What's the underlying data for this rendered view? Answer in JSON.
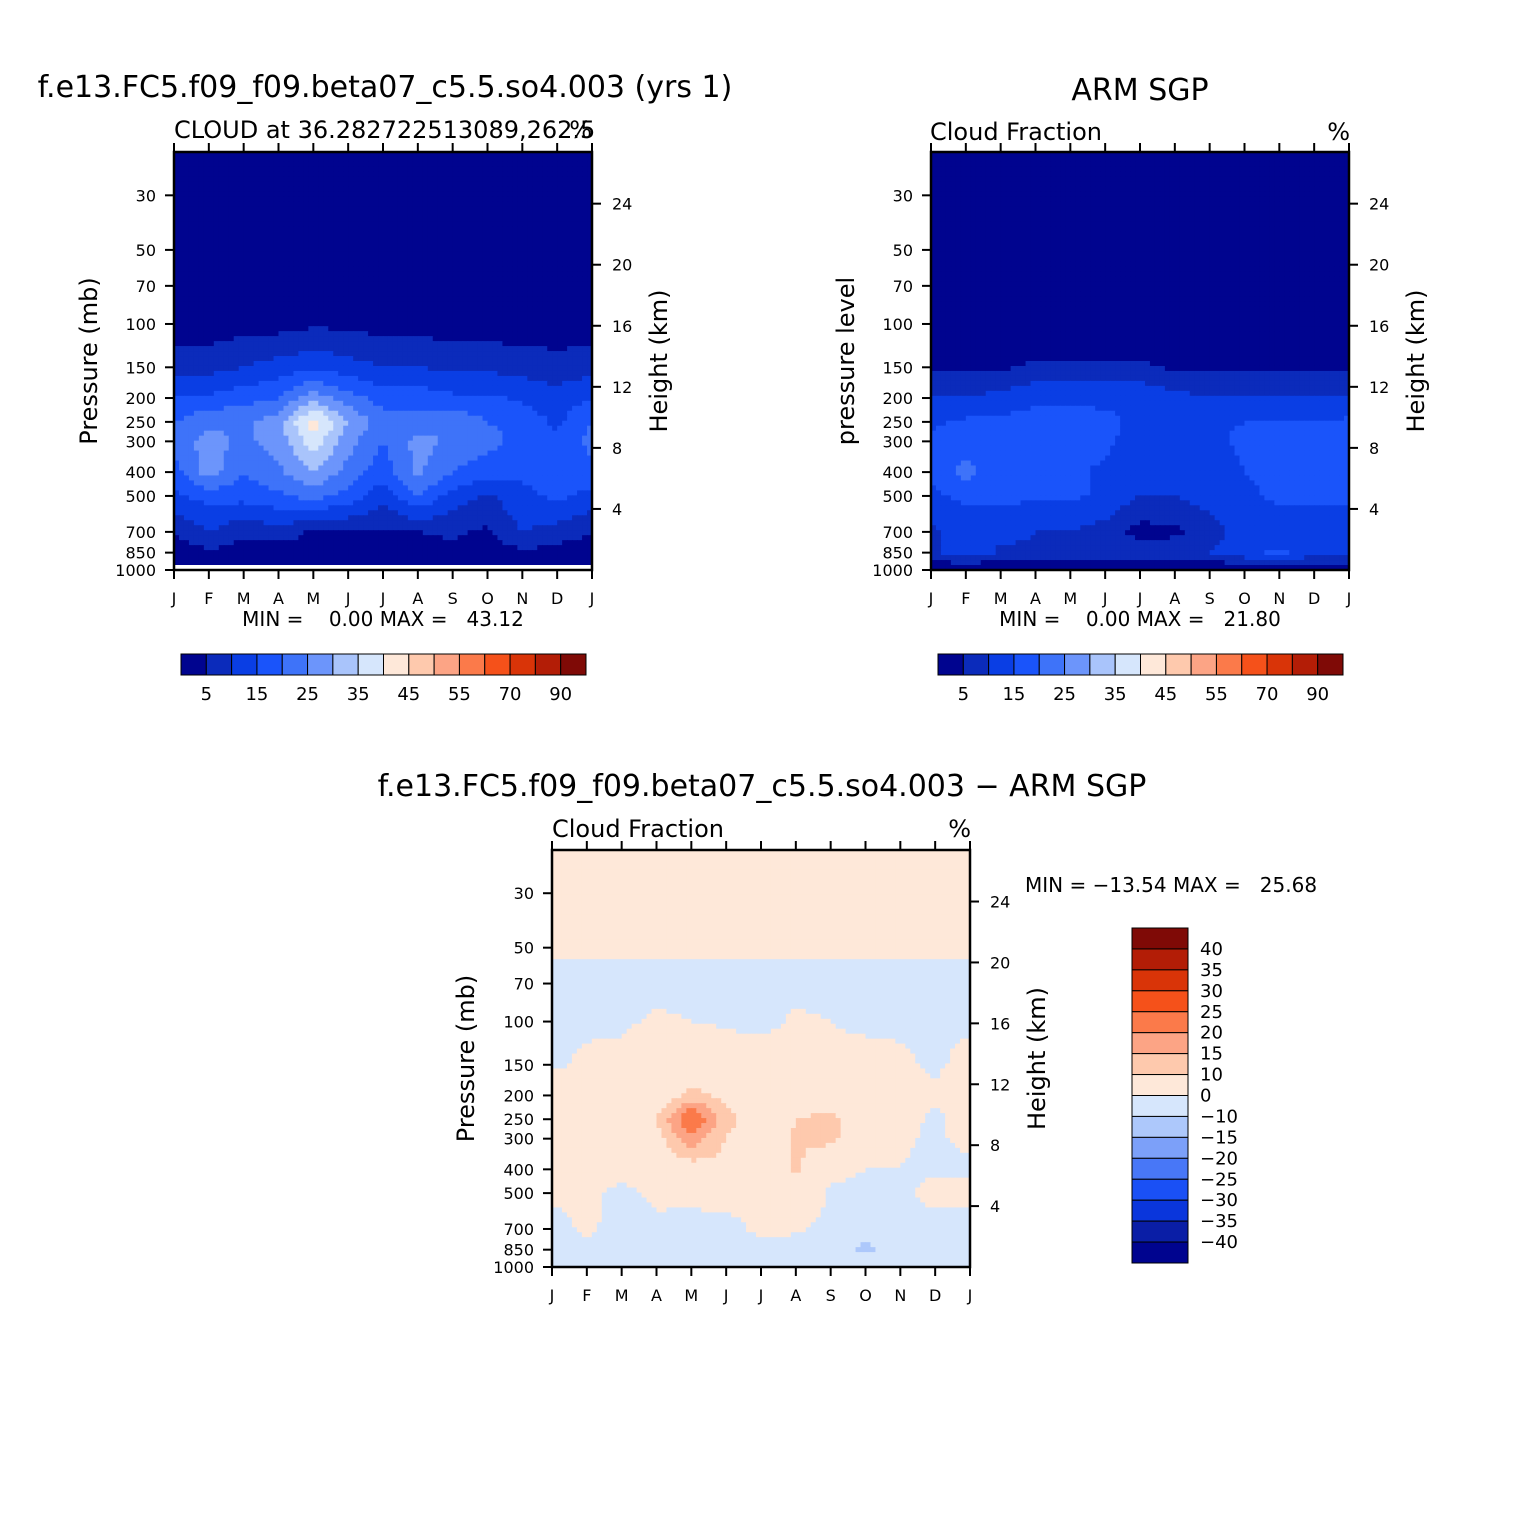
{
  "palettes": {
    "abs": [
      "#00048f",
      "#0b2bbb",
      "#0a3ee4",
      "#1a54fa",
      "#3e73f9",
      "#6c95fb",
      "#a9c4fb",
      "#d6e6fc",
      "#fee8d9",
      "#fec9ad",
      "#fca485",
      "#fb7a4a",
      "#f5511a",
      "#d93408",
      "#b31d06",
      "#7f0a06"
    ],
    "diff": [
      "#00048f",
      "#0a1ea6",
      "#0a36dc",
      "#1a50f5",
      "#4877f7",
      "#7ca0f9",
      "#adc8fb",
      "#d6e6fc",
      "#fee8d9",
      "#fec9ad",
      "#fca485",
      "#fb7a4a",
      "#f5511a",
      "#d93408",
      "#b31d06",
      "#7f0a06"
    ]
  },
  "chart_data": [
    {
      "type": "heatmap",
      "title": "f.e13.FC5.f09_f09.beta07_c5.5.so4.003 (yrs 1)",
      "subtitle": "CLOUD at 36.282722513089,262.5",
      "units": "%",
      "ylabel": "Pressure (mb)",
      "y2label": "Height (km)",
      "x": [
        "J",
        "F",
        "M",
        "A",
        "M",
        "J",
        "J",
        "A",
        "S",
        "O",
        "N",
        "D",
        "J"
      ],
      "y_pressure_ticks": [
        30,
        50,
        70,
        100,
        150,
        200,
        250,
        300,
        400,
        500,
        700,
        850,
        1000
      ],
      "y_height_ticks": [
        4,
        8,
        12,
        16,
        20,
        24
      ],
      "y_log_scale": true,
      "ylim": [
        1000,
        20
      ],
      "stats_text": "MIN =    0.00 MAX =   43.12",
      "min": 0.0,
      "max": 43.12,
      "colorbar_labels": [
        "5",
        "15",
        "25",
        "35",
        "45",
        "55",
        "70",
        "90"
      ],
      "contour_levels": [
        5,
        10,
        15,
        20,
        25,
        30,
        35,
        40,
        45,
        50,
        55,
        60,
        70,
        80,
        90
      ],
      "pressure_levels": [
        1000,
        850,
        700,
        500,
        400,
        300,
        250,
        200,
        150,
        100,
        70,
        50,
        30
      ],
      "values": [
        [
          0,
          0,
          0,
          0,
          0,
          0,
          0,
          0,
          0,
          0,
          0,
          0,
          0
        ],
        [
          2,
          4,
          3,
          2,
          3,
          2,
          4,
          3,
          3,
          3,
          4,
          3,
          2
        ],
        [
          5,
          10,
          6,
          8,
          4,
          5,
          4,
          5,
          6,
          4,
          10,
          8,
          5
        ],
        [
          14,
          17,
          17,
          19,
          22,
          18,
          12,
          20,
          13,
          9,
          14,
          16,
          14
        ],
        [
          18,
          28,
          20,
          24,
          30,
          23,
          17,
          26,
          20,
          17,
          16,
          15,
          18
        ],
        [
          22,
          27,
          24,
          27,
          38,
          27,
          20,
          27,
          24,
          22,
          18,
          16,
          22
        ],
        [
          20,
          24,
          24,
          28,
          43,
          30,
          22,
          22,
          24,
          20,
          18,
          14,
          20
        ],
        [
          15,
          16,
          18,
          20,
          28,
          22,
          18,
          18,
          16,
          16,
          14,
          12,
          15
        ],
        [
          8,
          8,
          10,
          12,
          14,
          12,
          10,
          10,
          9,
          9,
          8,
          7,
          8
        ],
        [
          2,
          2,
          3,
          3,
          4,
          4,
          3,
          3,
          2,
          2,
          2,
          2,
          2
        ],
        [
          0,
          0,
          0,
          0,
          0,
          0,
          0,
          0,
          0,
          0,
          0,
          0,
          0
        ],
        [
          0,
          0,
          0,
          0,
          0,
          0,
          0,
          0,
          0,
          0,
          0,
          0,
          0
        ],
        [
          0,
          0,
          0,
          0,
          0,
          0,
          0,
          0,
          0,
          0,
          0,
          0,
          0
        ]
      ]
    },
    {
      "type": "heatmap",
      "title": "ARM SGP",
      "subtitle": "Cloud Fraction",
      "units": "%",
      "ylabel": "pressure level",
      "y2label": "Height (km)",
      "x": [
        "J",
        "F",
        "M",
        "A",
        "M",
        "J",
        "J",
        "A",
        "S",
        "O",
        "N",
        "D",
        "J"
      ],
      "y_pressure_ticks": [
        30,
        50,
        70,
        100,
        150,
        200,
        250,
        300,
        400,
        500,
        700,
        850,
        1000
      ],
      "y_height_ticks": [
        4,
        8,
        12,
        16,
        20,
        24
      ],
      "y_log_scale": true,
      "ylim": [
        1000,
        20
      ],
      "stats_text": "MIN =    0.00 MAX =   21.80",
      "min": 0.0,
      "max": 21.8,
      "colorbar_labels": [
        "5",
        "15",
        "25",
        "35",
        "45",
        "55",
        "70",
        "90"
      ],
      "contour_levels": [
        5,
        10,
        15,
        20,
        25,
        30,
        35,
        40,
        45,
        50,
        55,
        60,
        70,
        80,
        90
      ],
      "pressure_levels": [
        1000,
        850,
        700,
        500,
        400,
        300,
        250,
        200,
        150,
        100,
        70,
        50,
        30
      ],
      "values": [
        [
          0,
          0,
          0,
          0,
          0,
          0,
          0,
          0,
          0,
          0,
          0,
          0,
          0
        ],
        [
          8,
          14,
          9,
          9,
          9,
          9,
          8,
          8,
          10,
          14,
          16,
          13,
          12
        ],
        [
          9,
          12,
          12,
          10,
          10,
          8,
          3,
          4,
          8,
          12,
          12,
          12,
          12
        ],
        [
          14,
          16,
          16,
          16,
          16,
          14,
          10,
          10,
          12,
          14,
          16,
          16,
          16
        ],
        [
          16,
          22,
          16,
          16,
          16,
          14,
          12,
          12,
          12,
          15,
          16,
          18,
          20
        ],
        [
          16,
          17,
          16,
          18,
          18,
          16,
          13,
          13,
          14,
          16,
          16,
          17,
          18
        ],
        [
          14,
          16,
          16,
          17,
          17,
          16,
          14,
          14,
          14,
          15,
          15,
          15,
          16
        ],
        [
          10,
          10,
          12,
          14,
          14,
          14,
          14,
          12,
          10,
          10,
          10,
          10,
          10
        ],
        [
          4,
          4,
          4,
          6,
          6,
          6,
          6,
          4,
          4,
          4,
          4,
          4,
          4
        ],
        [
          0,
          0,
          0,
          1,
          1,
          1,
          1,
          0,
          0,
          0,
          0,
          0,
          0
        ],
        [
          0,
          0,
          0,
          0,
          0,
          0,
          0,
          0,
          0,
          0,
          0,
          0,
          0
        ],
        [
          0,
          0,
          0,
          0,
          0,
          0,
          0,
          0,
          0,
          0,
          0,
          0,
          0
        ],
        [
          0,
          0,
          0,
          0,
          0,
          0,
          0,
          0,
          0,
          0,
          0,
          0,
          0
        ]
      ]
    },
    {
      "type": "heatmap",
      "title": "f.e13.FC5.f09_f09.beta07_c5.5.so4.003 − ARM SGP",
      "subtitle": "Cloud Fraction",
      "units": "%",
      "ylabel": "Pressure (mb)",
      "y2label": "Height (km)",
      "x": [
        "J",
        "F",
        "M",
        "A",
        "M",
        "J",
        "J",
        "A",
        "S",
        "O",
        "N",
        "D",
        "J"
      ],
      "y_pressure_ticks": [
        30,
        50,
        70,
        100,
        150,
        200,
        250,
        300,
        400,
        500,
        700,
        850,
        1000
      ],
      "y_height_ticks": [
        4,
        8,
        12,
        16,
        20,
        24
      ],
      "y_log_scale": true,
      "ylim": [
        1000,
        20
      ],
      "stats_text": "MIN = −13.54 MAX =   25.68",
      "min": -13.54,
      "max": 25.68,
      "colorbar_labels": [
        "40",
        "35",
        "30",
        "25",
        "20",
        "15",
        "10",
        "0",
        "−10",
        "−15",
        "−20",
        "−25",
        "−30",
        "−35",
        "−40"
      ],
      "contour_levels": [
        -40,
        -35,
        -30,
        -25,
        -20,
        -15,
        -10,
        0,
        10,
        15,
        20,
        25,
        30,
        35,
        40
      ],
      "pressure_levels": [
        1000,
        850,
        700,
        500,
        400,
        300,
        250,
        200,
        150,
        100,
        70,
        50,
        30
      ],
      "values": [
        [
          0,
          0,
          0,
          0,
          0,
          0,
          0,
          0,
          0,
          0,
          0,
          0,
          0
        ],
        [
          -6,
          -3,
          -4,
          -8,
          -3,
          -5,
          -3,
          -3,
          -3,
          -12,
          -3,
          -3,
          -6
        ],
        [
          -4,
          2,
          -4,
          -2,
          -4,
          -3,
          2,
          1,
          -2,
          -8,
          -2,
          -4,
          -5
        ],
        [
          2,
          2,
          -2,
          2,
          3,
          4,
          1,
          7,
          -1,
          -2,
          -2,
          3,
          4
        ],
        [
          3,
          6,
          2,
          6,
          7,
          8,
          3,
          11,
          2,
          0,
          0,
          -2,
          -2
        ],
        [
          6,
          8,
          7,
          8,
          18,
          10,
          4,
          11,
          12,
          3,
          1,
          -1,
          2
        ],
        [
          6,
          8,
          7,
          10,
          26,
          12,
          6,
          10,
          12,
          3,
          2,
          -1,
          2
        ],
        [
          4,
          5,
          4,
          5,
          12,
          8,
          4,
          5,
          4,
          4,
          2,
          1,
          3
        ],
        [
          -1,
          1,
          2,
          6,
          6,
          5,
          4,
          2,
          1,
          2,
          1,
          -1,
          2
        ],
        [
          -1,
          -1,
          -1,
          1,
          0,
          -1,
          -2,
          1,
          0,
          -1,
          -1,
          -1,
          -1
        ],
        [
          -2,
          -2,
          -2,
          -2,
          -2,
          -2,
          -2,
          -2,
          -2,
          -2,
          -2,
          -2,
          -2
        ],
        [
          1,
          1,
          1,
          1,
          1,
          1,
          1,
          1,
          1,
          1,
          1,
          1,
          1
        ],
        [
          1,
          1,
          1,
          1,
          1,
          1,
          1,
          1,
          1,
          1,
          1,
          1,
          1
        ]
      ]
    }
  ]
}
